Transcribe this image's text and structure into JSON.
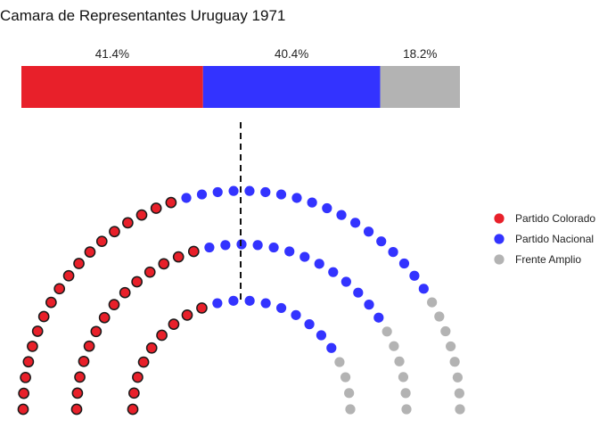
{
  "chart_data": {
    "type": "parliament",
    "title": "Camara de Representantes Uruguay 1971",
    "total_seats": 99,
    "majority_line": true,
    "legend_position": "right",
    "parties": [
      {
        "name": "Partido Colorado",
        "seats": 41,
        "share_label": "41.4%",
        "share": 41.4,
        "color": "#E8202A",
        "outlined": true
      },
      {
        "name": "Partido Nacional",
        "seats": 40,
        "share_label": "40.4%",
        "share": 40.4,
        "color": "#3333FF",
        "outlined": false
      },
      {
        "name": "Frente Amplio",
        "seats": 18,
        "share_label": "18.2%",
        "share": 18.2,
        "color": "#B3B3B3",
        "outlined": false
      }
    ],
    "rows": [
      {
        "seats": 22
      },
      {
        "seats": 33
      },
      {
        "seats": 44
      }
    ]
  }
}
